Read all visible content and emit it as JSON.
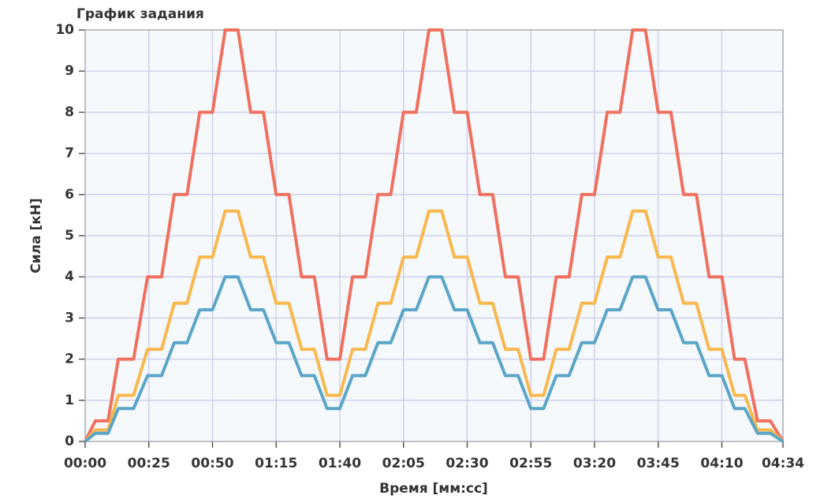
{
  "chart_data": {
    "type": "line",
    "title": "График задания",
    "x_label": "Время [мм:сс]",
    "y_label": "Сила [кН]",
    "x": [
      0,
      4,
      9,
      13,
      19,
      24.5,
      30,
      35,
      40,
      45,
      50,
      55,
      60,
      65,
      70,
      75,
      80,
      85,
      90,
      95,
      100,
      105,
      110,
      115,
      120,
      125,
      130,
      135,
      140,
      145,
      150,
      155,
      160,
      165,
      170,
      175,
      180,
      185,
      190,
      195,
      200,
      205,
      210,
      215,
      220,
      225,
      230,
      235,
      240,
      245,
      250,
      255,
      259,
      264,
      269,
      274
    ],
    "series": [
      {
        "color": "#f0705f",
        "values": [
          0,
          0.5,
          0.5,
          2,
          2,
          4,
          4,
          6,
          6,
          8,
          8,
          10,
          10,
          8,
          8,
          6,
          6,
          4,
          4,
          2,
          2,
          4,
          4,
          6,
          6,
          8,
          8,
          10,
          10,
          8,
          8,
          6,
          6,
          4,
          4,
          2,
          2,
          4,
          4,
          6,
          6,
          8,
          8,
          10,
          10,
          8,
          8,
          6,
          6,
          4,
          4,
          2,
          2,
          0.5,
          0.5,
          0
        ]
      },
      {
        "color": "#f8b84e",
        "values": [
          0,
          0.28,
          0.28,
          1.12,
          1.12,
          2.24,
          2.24,
          3.36,
          3.36,
          4.48,
          4.48,
          5.6,
          5.6,
          4.48,
          4.48,
          3.36,
          3.36,
          2.24,
          2.24,
          1.12,
          1.12,
          2.24,
          2.24,
          3.36,
          3.36,
          4.48,
          4.48,
          5.6,
          5.6,
          4.48,
          4.48,
          3.36,
          3.36,
          2.24,
          2.24,
          1.12,
          1.12,
          2.24,
          2.24,
          3.36,
          3.36,
          4.48,
          4.48,
          5.6,
          5.6,
          4.48,
          4.48,
          3.36,
          3.36,
          2.24,
          2.24,
          1.12,
          1.12,
          0.28,
          0.28,
          0
        ]
      },
      {
        "color": "#5aa5c8",
        "values": [
          0,
          0.2,
          0.2,
          0.8,
          0.8,
          1.6,
          1.6,
          2.4,
          2.4,
          3.2,
          3.2,
          4,
          4,
          3.2,
          3.2,
          2.4,
          2.4,
          1.6,
          1.6,
          0.8,
          0.8,
          1.6,
          1.6,
          2.4,
          2.4,
          3.2,
          3.2,
          4,
          4,
          3.2,
          3.2,
          2.4,
          2.4,
          1.6,
          1.6,
          0.8,
          0.8,
          1.6,
          1.6,
          2.4,
          2.4,
          3.2,
          3.2,
          4,
          4,
          3.2,
          3.2,
          2.4,
          2.4,
          1.6,
          1.6,
          0.8,
          0.8,
          0.2,
          0.2,
          0
        ]
      }
    ],
    "xlim": [
      0,
      274
    ],
    "xticks": [
      {
        "value": 0,
        "label": "00:00"
      },
      {
        "value": 25,
        "label": "00:25"
      },
      {
        "value": 50,
        "label": "00:50"
      },
      {
        "value": 75,
        "label": "01:15"
      },
      {
        "value": 100,
        "label": "01:40"
      },
      {
        "value": 125,
        "label": "02:05"
      },
      {
        "value": 150,
        "label": "02:30"
      },
      {
        "value": 175,
        "label": "02:55"
      },
      {
        "value": 200,
        "label": "03:20"
      },
      {
        "value": 225,
        "label": "03:45"
      },
      {
        "value": 250,
        "label": "04:10"
      },
      {
        "value": 274,
        "label": "04:34"
      }
    ],
    "ylim": [
      0,
      10
    ],
    "yticks": [
      0,
      1,
      2,
      3,
      4,
      5,
      6,
      7,
      8,
      9,
      10
    ],
    "grid": true
  }
}
